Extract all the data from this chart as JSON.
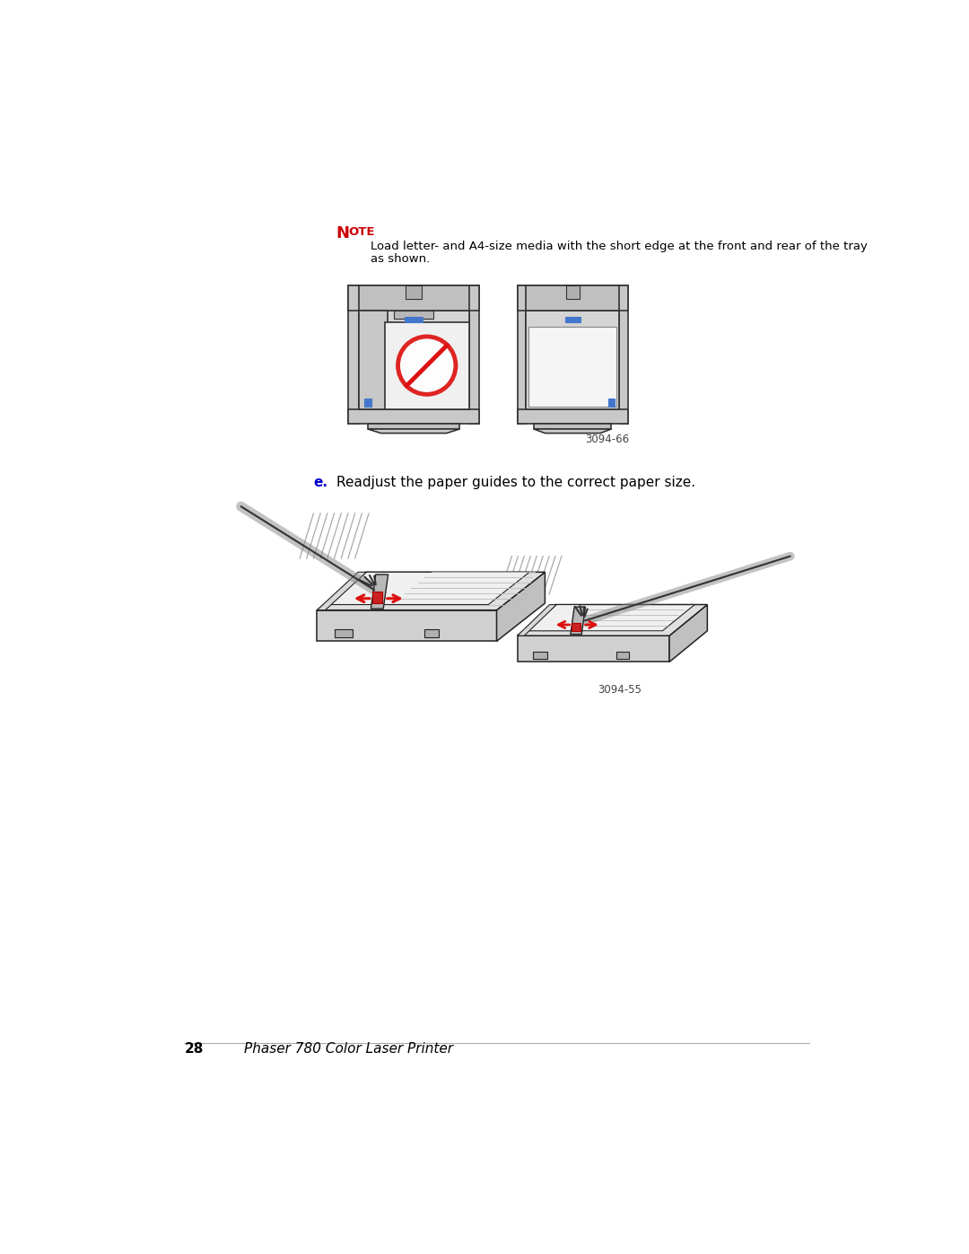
{
  "bg_color": "#ffffff",
  "note_color": "#cc0000",
  "note_text_line1": "Load letter- and A4-size media with the short edge at the front and rear of the tray",
  "note_text_line2": "as shown.",
  "step_e_label": "e.",
  "step_e_label_color": "#0000cc",
  "step_e_text": "Readjust the paper guides to the correct paper size.",
  "figure_label1": "3094-66",
  "figure_label2": "3094-55",
  "footer_page": "28",
  "footer_text": "Phaser 780 Color Laser Printer",
  "line_color": "#000000",
  "gray_light": "#c8c8c8",
  "gray_medium": "#aaaaaa",
  "gray_dark": "#888888",
  "blue_guide": "#4477cc",
  "red_symbol": "#dd1111"
}
